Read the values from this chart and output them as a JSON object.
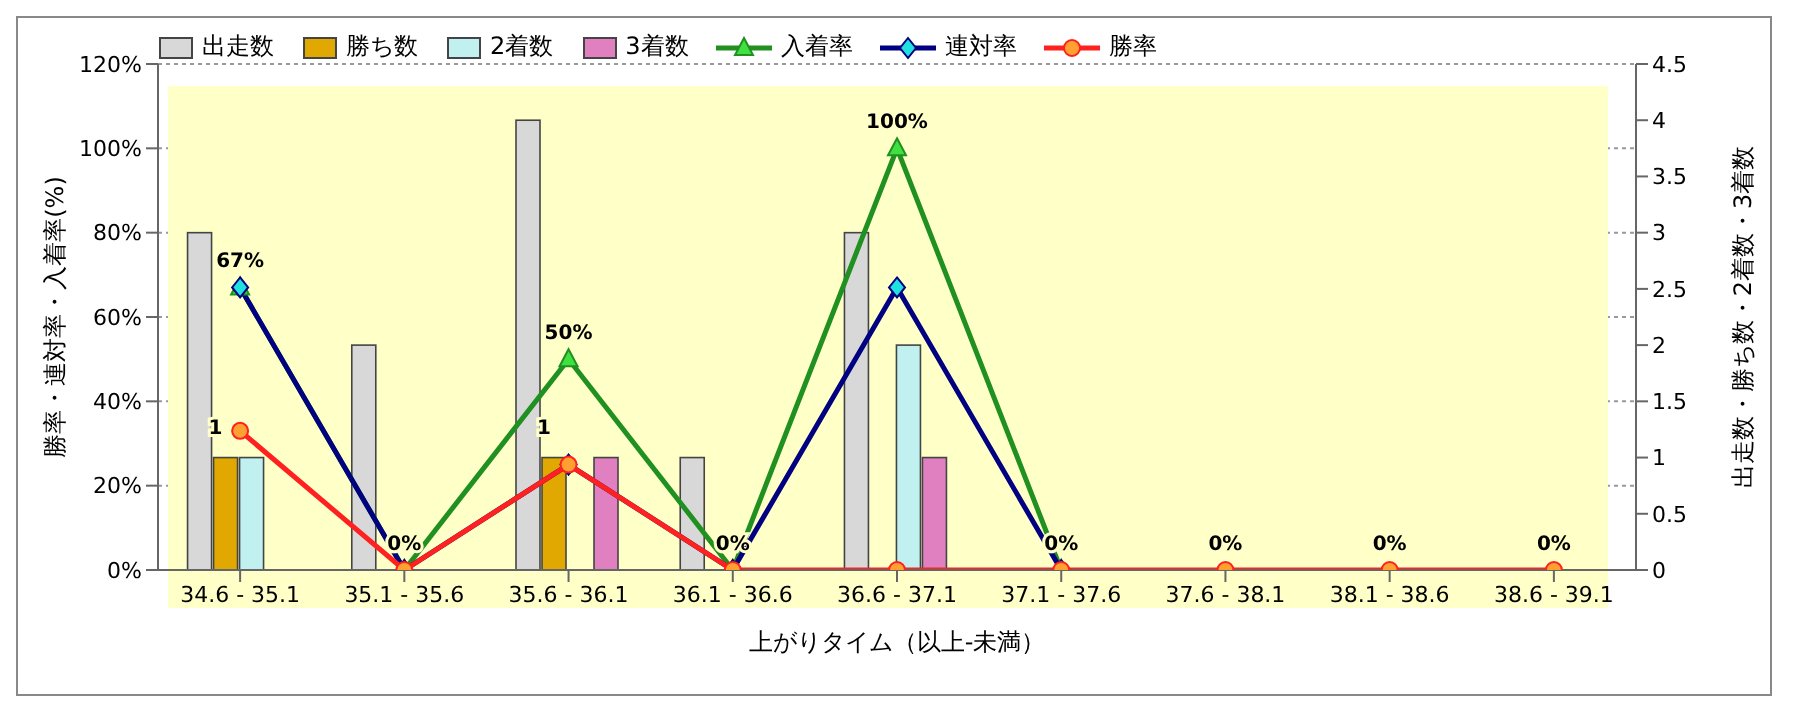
{
  "chart_data": {
    "type": "bar",
    "xlabel": "上がりタイム（以上-未満）",
    "ylabel": "勝率・連対率・入着率(%)",
    "y2label": "出走数・勝ち数・2着数・3着数",
    "categories": [
      "34.6 - 35.1",
      "35.1 - 35.6",
      "35.6 - 36.1",
      "36.1 - 36.6",
      "36.6 - 37.1",
      "37.1 - 37.6",
      "37.6 - 38.1",
      "38.1 - 38.6",
      "38.6 - 39.1"
    ],
    "series": [
      {
        "name": "出走数",
        "axis": "y2",
        "color": "#d8d8d8",
        "values": [
          3,
          2,
          4,
          1,
          3,
          0,
          0,
          0,
          0
        ]
      },
      {
        "name": "勝ち数",
        "axis": "y2",
        "color": "#e0a800",
        "values": [
          1,
          0,
          1,
          0,
          0,
          0,
          0,
          0,
          0
        ],
        "value_labels": [
          "1",
          null,
          "1",
          null,
          null,
          null,
          null,
          null,
          null
        ]
      },
      {
        "name": "2着数",
        "axis": "y2",
        "color": "#c0f0f0",
        "values": [
          1,
          0,
          0,
          0,
          2,
          0,
          0,
          0,
          0
        ]
      },
      {
        "name": "3着数",
        "axis": "y2",
        "color": "#e080c0",
        "values": [
          0,
          0,
          1,
          0,
          1,
          0,
          0,
          0,
          0
        ]
      },
      {
        "name": "入着率",
        "type": "line",
        "color": "#209020",
        "marker": "triangle",
        "values": [
          67,
          0,
          50,
          0,
          100,
          0,
          null,
          null,
          null
        ],
        "value_labels": [
          "67%",
          "0%",
          "50%",
          "0%",
          "100%",
          "0%",
          null,
          null,
          null
        ]
      },
      {
        "name": "連対率",
        "type": "line",
        "color": "#000080",
        "marker": "diamond",
        "values": [
          67,
          0,
          25,
          0,
          67,
          0,
          null,
          null,
          null
        ]
      },
      {
        "name": "勝率",
        "type": "line",
        "color": "#ff2020",
        "marker": "circle",
        "values": [
          33,
          0,
          25,
          0,
          0,
          0,
          0,
          0,
          0
        ],
        "value_labels": [
          null,
          null,
          null,
          null,
          null,
          null,
          "0%",
          "0%",
          "0%"
        ]
      }
    ],
    "ylim": [
      0,
      120
    ],
    "yticks": [
      {
        "value": 0,
        "label": "0%"
      },
      {
        "value": 20,
        "label": "20%"
      },
      {
        "value": 40,
        "label": "40%"
      },
      {
        "value": 60,
        "label": "60%"
      },
      {
        "value": 80,
        "label": "80%"
      },
      {
        "value": 100,
        "label": "100%"
      },
      {
        "value": 120,
        "label": "120%"
      }
    ],
    "y2lim": [
      0,
      4.5
    ],
    "y2ticks": [
      0,
      0.5,
      1,
      1.5,
      2,
      2.5,
      3,
      3.5,
      4,
      4.5
    ],
    "grid": "y",
    "legend": "top left"
  }
}
